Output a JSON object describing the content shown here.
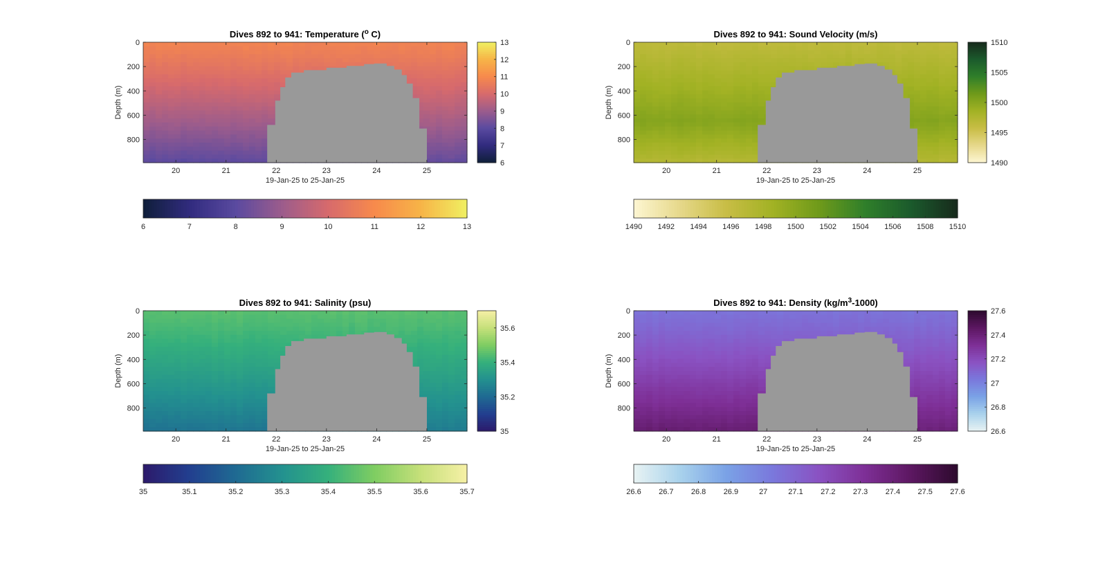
{
  "chart_data": [
    {
      "id": "temperature",
      "type": "heatmap",
      "title": "Dives 892 to 941: Temperature (",
      "title_sup": "o",
      "title_end": " C)",
      "xlabel": "19-Jan-25 to 25-Jan-25",
      "ylabel": "Depth (m)",
      "xlim": [
        19.35,
        25.8
      ],
      "ylim": [
        0,
        990
      ],
      "x_ticks": [
        20,
        21,
        22,
        23,
        24,
        25
      ],
      "y_ticks": [
        0,
        200,
        400,
        600,
        800
      ],
      "side_colorbar_ticks": [
        6,
        7,
        8,
        9,
        10,
        11,
        12,
        13
      ],
      "bottom_colorbar_ticks": [
        6,
        7,
        8,
        9,
        10,
        11,
        12,
        13
      ],
      "clim": [
        6,
        13
      ],
      "colormap": [
        "#0f1f3a",
        "#312b7e",
        "#5a4aa0",
        "#9c5c8c",
        "#d76a6c",
        "#f78a4c",
        "#f7b447",
        "#f0f062"
      ],
      "profile": {
        "surface_value": 10.8,
        "deep_value": 8.0,
        "east_adjust": 0.15
      },
      "no_data_color": "#999999",
      "no_data_region": [
        [
          21.82,
          990
        ],
        [
          21.82,
          680
        ],
        [
          21.98,
          680
        ],
        [
          21.98,
          480
        ],
        [
          22.08,
          480
        ],
        [
          22.08,
          370
        ],
        [
          22.18,
          370
        ],
        [
          22.18,
          290
        ],
        [
          22.3,
          290
        ],
        [
          22.3,
          250
        ],
        [
          22.55,
          250
        ],
        [
          22.55,
          230
        ],
        [
          23.0,
          230
        ],
        [
          23.0,
          210
        ],
        [
          23.4,
          210
        ],
        [
          23.4,
          195
        ],
        [
          23.75,
          195
        ],
        [
          23.75,
          180
        ],
        [
          23.95,
          180
        ],
        [
          23.95,
          175
        ],
        [
          24.2,
          175
        ],
        [
          24.2,
          195
        ],
        [
          24.35,
          195
        ],
        [
          24.35,
          225
        ],
        [
          24.5,
          225
        ],
        [
          24.5,
          270
        ],
        [
          24.6,
          270
        ],
        [
          24.6,
          340
        ],
        [
          24.72,
          340
        ],
        [
          24.72,
          460
        ],
        [
          24.85,
          460
        ],
        [
          24.85,
          710
        ],
        [
          25.0,
          710
        ],
        [
          25.0,
          990
        ]
      ]
    },
    {
      "id": "sound-velocity",
      "type": "heatmap",
      "title": "Dives 892 to 941: Sound Velocity (m/s)",
      "xlabel": "19-Jan-25 to 25-Jan-25",
      "ylabel": "Depth (m)",
      "xlim": [
        19.35,
        25.8
      ],
      "ylim": [
        0,
        990
      ],
      "x_ticks": [
        20,
        21,
        22,
        23,
        24,
        25
      ],
      "y_ticks": [
        0,
        200,
        400,
        600,
        800
      ],
      "side_colorbar_ticks": [
        1490,
        1495,
        1500,
        1505,
        1510
      ],
      "bottom_colorbar_ticks": [
        1490,
        1492,
        1494,
        1496,
        1498,
        1500,
        1502,
        1504,
        1506,
        1508,
        1510
      ],
      "clim": [
        1490,
        1510
      ],
      "colormap": [
        "#fdf6d2",
        "#e6d88a",
        "#c8bd45",
        "#a2b224",
        "#6f9a1a",
        "#2f7f2a",
        "#1b5a2c",
        "#172a1c"
      ],
      "profile": {
        "surface_value": 1496.5,
        "mid_value": 1500.2,
        "mid_depth": 650,
        "deep_value": 1497.2
      },
      "no_data_color": "#999999",
      "no_data_region": [
        [
          21.82,
          990
        ],
        [
          21.82,
          680
        ],
        [
          21.98,
          680
        ],
        [
          21.98,
          480
        ],
        [
          22.08,
          480
        ],
        [
          22.08,
          370
        ],
        [
          22.18,
          370
        ],
        [
          22.18,
          290
        ],
        [
          22.3,
          290
        ],
        [
          22.3,
          250
        ],
        [
          22.55,
          250
        ],
        [
          22.55,
          230
        ],
        [
          23.0,
          230
        ],
        [
          23.0,
          210
        ],
        [
          23.4,
          210
        ],
        [
          23.4,
          195
        ],
        [
          23.75,
          195
        ],
        [
          23.75,
          180
        ],
        [
          23.95,
          180
        ],
        [
          23.95,
          175
        ],
        [
          24.2,
          175
        ],
        [
          24.2,
          195
        ],
        [
          24.35,
          195
        ],
        [
          24.35,
          225
        ],
        [
          24.5,
          225
        ],
        [
          24.5,
          270
        ],
        [
          24.6,
          270
        ],
        [
          24.6,
          340
        ],
        [
          24.72,
          340
        ],
        [
          24.72,
          460
        ],
        [
          24.85,
          460
        ],
        [
          24.85,
          710
        ],
        [
          25.0,
          710
        ],
        [
          25.0,
          990
        ]
      ]
    },
    {
      "id": "salinity",
      "type": "heatmap",
      "title": "Dives 892 to 941: Salinity (psu)",
      "xlabel": "19-Jan-25 to 25-Jan-25",
      "ylabel": "Depth (m)",
      "xlim": [
        19.35,
        25.8
      ],
      "ylim": [
        0,
        990
      ],
      "x_ticks": [
        20,
        21,
        22,
        23,
        24,
        25
      ],
      "y_ticks": [
        0,
        200,
        400,
        600,
        800
      ],
      "side_colorbar_ticks": [
        35,
        35.2,
        35.4,
        35.6
      ],
      "bottom_colorbar_ticks": [
        35,
        35.1,
        35.2,
        35.3,
        35.4,
        35.5,
        35.6,
        35.7
      ],
      "clim": [
        35,
        35.7
      ],
      "colormap": [
        "#2c1a6b",
        "#223f8f",
        "#1f6a92",
        "#23918f",
        "#35b07c",
        "#7fcd62",
        "#c6e07a",
        "#f6f0a6"
      ],
      "profile": {
        "surface_value": 35.45,
        "deep_value": 35.22,
        "east_adjust": 0.03
      },
      "no_data_color": "#999999",
      "no_data_region": [
        [
          21.82,
          990
        ],
        [
          21.82,
          680
        ],
        [
          21.98,
          680
        ],
        [
          21.98,
          480
        ],
        [
          22.08,
          480
        ],
        [
          22.08,
          370
        ],
        [
          22.18,
          370
        ],
        [
          22.18,
          290
        ],
        [
          22.3,
          290
        ],
        [
          22.3,
          250
        ],
        [
          22.55,
          250
        ],
        [
          22.55,
          230
        ],
        [
          23.0,
          230
        ],
        [
          23.0,
          210
        ],
        [
          23.4,
          210
        ],
        [
          23.4,
          195
        ],
        [
          23.75,
          195
        ],
        [
          23.75,
          180
        ],
        [
          23.95,
          180
        ],
        [
          23.95,
          175
        ],
        [
          24.2,
          175
        ],
        [
          24.2,
          195
        ],
        [
          24.35,
          195
        ],
        [
          24.35,
          225
        ],
        [
          24.5,
          225
        ],
        [
          24.5,
          270
        ],
        [
          24.6,
          270
        ],
        [
          24.6,
          340
        ],
        [
          24.72,
          340
        ],
        [
          24.72,
          460
        ],
        [
          24.85,
          460
        ],
        [
          24.85,
          710
        ],
        [
          25.0,
          710
        ],
        [
          25.0,
          990
        ]
      ]
    },
    {
      "id": "density",
      "type": "heatmap",
      "title": "Dives 892 to 941: Density (kg/m",
      "title_sup": "3",
      "title_end": "-1000)",
      "xlabel": "19-Jan-25 to 25-Jan-25",
      "ylabel": "Depth (m)",
      "xlim": [
        19.35,
        25.8
      ],
      "ylim": [
        0,
        990
      ],
      "x_ticks": [
        20,
        21,
        22,
        23,
        24,
        25
      ],
      "y_ticks": [
        0,
        200,
        400,
        600,
        800
      ],
      "side_colorbar_ticks": [
        26.6,
        26.8,
        27,
        27.2,
        27.4,
        27.6
      ],
      "bottom_colorbar_ticks": [
        26.6,
        26.7,
        26.8,
        26.9,
        27,
        27.1,
        27.2,
        27.3,
        27.4,
        27.5,
        27.6
      ],
      "clim": [
        26.6,
        27.6
      ],
      "colormap": [
        "#e8f3f3",
        "#a9d2ec",
        "#7aa2e6",
        "#7a78dc",
        "#8a52c2",
        "#7e2f96",
        "#5c1761",
        "#2d0a2e"
      ],
      "profile": {
        "surface_value": 27.05,
        "deep_value": 27.42,
        "east_adjust": -0.03
      },
      "no_data_color": "#999999",
      "no_data_region": [
        [
          21.82,
          990
        ],
        [
          21.82,
          680
        ],
        [
          21.98,
          680
        ],
        [
          21.98,
          480
        ],
        [
          22.08,
          480
        ],
        [
          22.08,
          370
        ],
        [
          22.18,
          370
        ],
        [
          22.18,
          290
        ],
        [
          22.3,
          290
        ],
        [
          22.3,
          250
        ],
        [
          22.55,
          250
        ],
        [
          22.55,
          230
        ],
        [
          23.0,
          230
        ],
        [
          23.0,
          210
        ],
        [
          23.4,
          210
        ],
        [
          23.4,
          195
        ],
        [
          23.75,
          195
        ],
        [
          23.75,
          180
        ],
        [
          23.95,
          180
        ],
        [
          23.95,
          175
        ],
        [
          24.2,
          175
        ],
        [
          24.2,
          195
        ],
        [
          24.35,
          195
        ],
        [
          24.35,
          225
        ],
        [
          24.5,
          225
        ],
        [
          24.5,
          270
        ],
        [
          24.6,
          270
        ],
        [
          24.6,
          340
        ],
        [
          24.72,
          340
        ],
        [
          24.72,
          460
        ],
        [
          24.85,
          460
        ],
        [
          24.85,
          710
        ],
        [
          25.0,
          710
        ],
        [
          25.0,
          990
        ]
      ]
    }
  ]
}
